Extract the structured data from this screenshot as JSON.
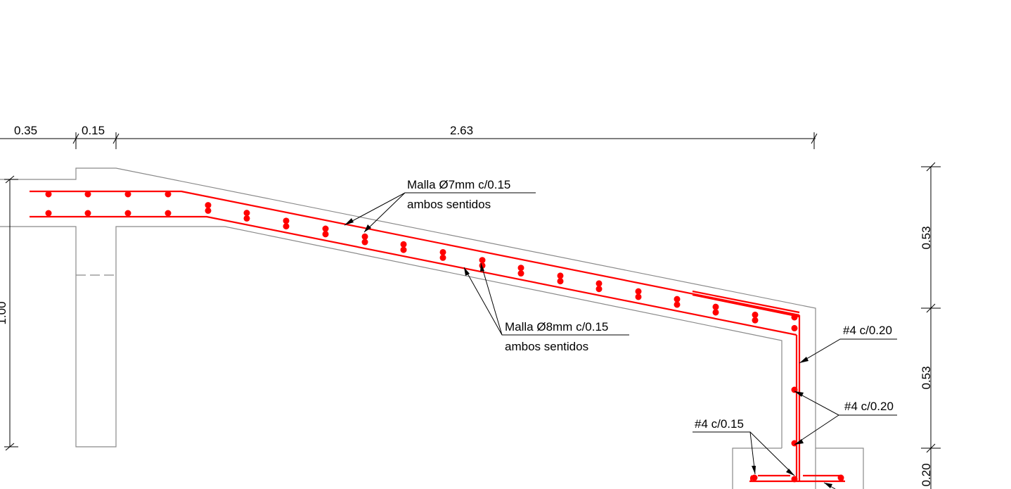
{
  "colors": {
    "concrete_outline": "#8a8a8a",
    "rebar": "#ff0000",
    "dimension": "#000000",
    "background": "#ffffff"
  },
  "dimensions": {
    "top_a": "0.35",
    "top_b": "0.15",
    "top_c": "2.63",
    "left_height": "1.00",
    "right_upper": "0.53",
    "right_middle": "0.53",
    "right_lower": "0.20"
  },
  "labels": {
    "mesh_top": {
      "line1": "Malla Ø7mm c/0.15",
      "line2": "ambos sentidos"
    },
    "mesh_bottom": {
      "line1": "Malla Ø8mm c/0.15",
      "line2": "ambos sentidos"
    },
    "wall_bar": "#4 c/0.20",
    "wall_longitudinal": "#4 c/0.20",
    "footing_bars": "#4 c/0.15"
  }
}
